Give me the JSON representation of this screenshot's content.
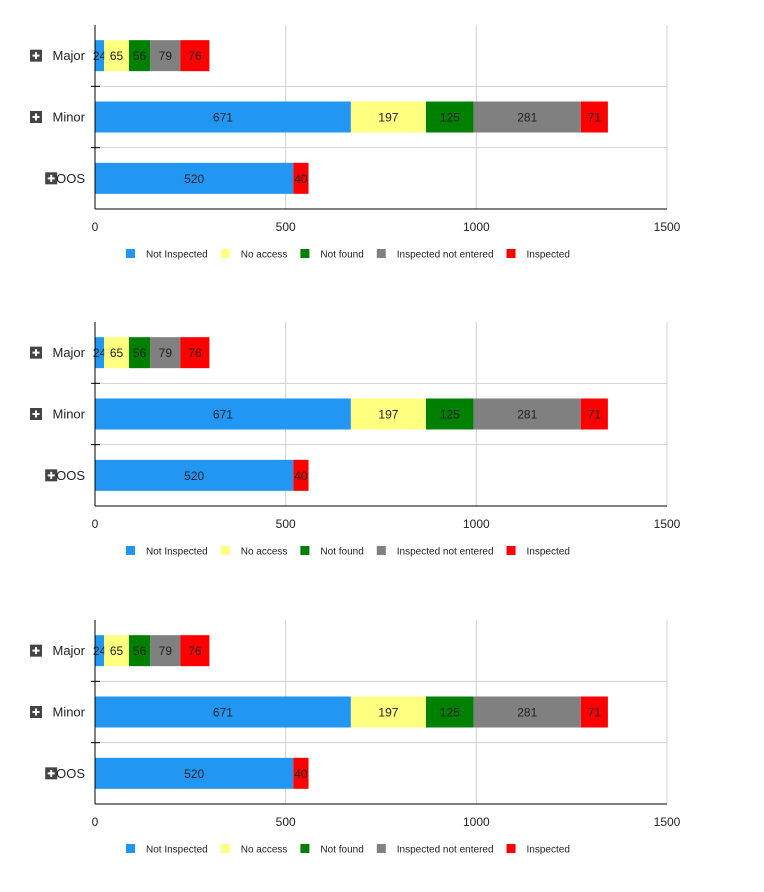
{
  "chart_data": [
    {
      "type": "bar",
      "orientation": "horizontal",
      "stacked": true,
      "categories": [
        "Major",
        "Minor",
        "OOS"
      ],
      "series": [
        {
          "name": "Not Inspected",
          "color": "#2196f3",
          "values": [
            24,
            671,
            520
          ],
          "labels": [
            "24",
            "671",
            "520"
          ]
        },
        {
          "name": "No access",
          "color": "#ffff80",
          "values": [
            65,
            197,
            0
          ],
          "labels": [
            "65",
            "197",
            ""
          ]
        },
        {
          "name": "Not found",
          "color": "#008000",
          "values": [
            56,
            125,
            0
          ],
          "labels": [
            "56",
            "125",
            ""
          ]
        },
        {
          "name": "Inspected not entered",
          "color": "#808080",
          "values": [
            79,
            281,
            0
          ],
          "labels": [
            "79",
            "281",
            ""
          ]
        },
        {
          "name": "Inspected",
          "color": "#ff0000",
          "values": [
            76,
            71,
            40
          ],
          "labels": [
            "76",
            "71",
            "40"
          ]
        }
      ],
      "xlim": [
        0,
        1500
      ],
      "xticks": [
        "0",
        "500",
        "1000",
        "1500"
      ],
      "grid": true,
      "legend": "bottom",
      "category_icon": "expand-plus-icon"
    },
    {
      "type": "bar",
      "orientation": "horizontal",
      "stacked": true,
      "categories": [
        "Major",
        "Minor",
        "OOS"
      ],
      "series": [
        {
          "name": "Not Inspected",
          "color": "#2196f3",
          "values": [
            24,
            671,
            520
          ],
          "labels": [
            "24",
            "671",
            "520"
          ]
        },
        {
          "name": "No access",
          "color": "#ffff80",
          "values": [
            65,
            197,
            0
          ],
          "labels": [
            "65",
            "197",
            ""
          ]
        },
        {
          "name": "Not found",
          "color": "#008000",
          "values": [
            56,
            125,
            0
          ],
          "labels": [
            "56",
            "125",
            ""
          ]
        },
        {
          "name": "Inspected not entered",
          "color": "#808080",
          "values": [
            79,
            281,
            0
          ],
          "labels": [
            "79",
            "281",
            ""
          ]
        },
        {
          "name": "Inspected",
          "color": "#ff0000",
          "values": [
            76,
            71,
            40
          ],
          "labels": [
            "76",
            "71",
            "40"
          ]
        }
      ],
      "xlim": [
        0,
        1500
      ],
      "xticks": [
        "0",
        "500",
        "1000",
        "1500"
      ],
      "grid": true,
      "legend": "bottom",
      "category_icon": "expand-plus-icon"
    },
    {
      "type": "bar",
      "orientation": "horizontal",
      "stacked": true,
      "categories": [
        "Major",
        "Minor",
        "OOS"
      ],
      "series": [
        {
          "name": "Not Inspected",
          "color": "#2196f3",
          "values": [
            24,
            671,
            520
          ],
          "labels": [
            "24",
            "671",
            "520"
          ]
        },
        {
          "name": "No access",
          "color": "#ffff80",
          "values": [
            65,
            197,
            0
          ],
          "labels": [
            "65",
            "197",
            ""
          ]
        },
        {
          "name": "Not found",
          "color": "#008000",
          "values": [
            56,
            125,
            0
          ],
          "labels": [
            "56",
            "125",
            ""
          ]
        },
        {
          "name": "Inspected not entered",
          "color": "#808080",
          "values": [
            79,
            281,
            0
          ],
          "labels": [
            "79",
            "281",
            ""
          ]
        },
        {
          "name": "Inspected",
          "color": "#ff0000",
          "values": [
            76,
            71,
            40
          ],
          "labels": [
            "76",
            "71",
            "40"
          ]
        }
      ],
      "xlim": [
        0,
        1500
      ],
      "xticks": [
        "0",
        "500",
        "1000",
        "1500"
      ],
      "grid": true,
      "legend": "bottom",
      "category_icon": "expand-plus-icon"
    }
  ]
}
